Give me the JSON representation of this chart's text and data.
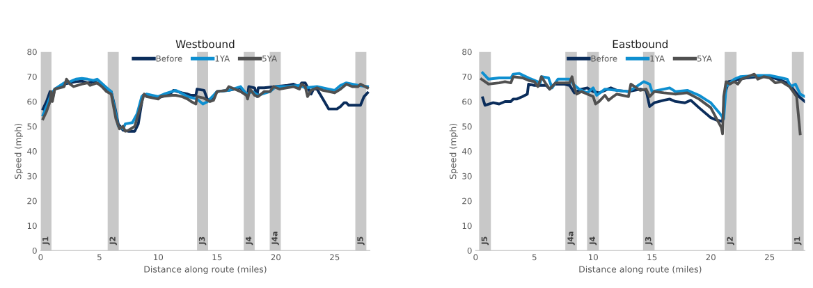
{
  "chart_data": [
    {
      "type": "line",
      "title": "Westbound",
      "xlabel": "Distance along route (miles)",
      "ylabel": "Speed (mph)",
      "xlim": [
        0,
        28
      ],
      "xticks": [
        0,
        5,
        10,
        15,
        20,
        25
      ],
      "ylim": [
        0,
        80
      ],
      "yticks": [
        0,
        10,
        20,
        30,
        40,
        50,
        60,
        70,
        80
      ],
      "grid": false,
      "legend": "top",
      "line_style": "solid",
      "marker": "none",
      "bands": [
        {
          "axis": "x",
          "from": 0,
          "to": 0.92,
          "label": "J1",
          "color": "#c8c8c8"
        },
        {
          "axis": "x",
          "from": 5.7,
          "to": 6.64,
          "label": "J2",
          "color": "#c8c8c8"
        },
        {
          "axis": "x",
          "from": 13.3,
          "to": 14.24,
          "label": "J3",
          "color": "#c8c8c8"
        },
        {
          "axis": "x",
          "from": 17.27,
          "to": 18.2,
          "label": "J4",
          "color": "#c8c8c8"
        },
        {
          "axis": "x",
          "from": 19.48,
          "to": 20.42,
          "label": "J4a",
          "color": "#c8c8c8"
        },
        {
          "axis": "x",
          "from": 26.76,
          "to": 27.7,
          "label": "J5",
          "color": "#c8c8c8"
        }
      ],
      "series": [
        {
          "name": "Before",
          "color": "#0b2d5b",
          "x": [
            0.2,
            0.5,
            0.8,
            1.0,
            1.2,
            2,
            2.5,
            3,
            3.5,
            4,
            4.5,
            5,
            5.5,
            6,
            6.3,
            6.6,
            7,
            7.5,
            8,
            8.3,
            8.7,
            9,
            10,
            11,
            11.3,
            12,
            12.5,
            12.8,
            13.2,
            13.3,
            13.9,
            14.2,
            14.5,
            15,
            16,
            17,
            17.3,
            17.6,
            17.7,
            18.2,
            18.4,
            18.5,
            19,
            20,
            21,
            21.5,
            22,
            22.2,
            22.5,
            23,
            23.2,
            23.5,
            24,
            24.5,
            25.2,
            25.5,
            25.8,
            26,
            26.2,
            27,
            27.2,
            27.5,
            27.8
          ],
          "values": [
            57,
            60,
            64,
            61,
            65,
            67,
            67.5,
            68,
            68.2,
            67.5,
            68,
            67,
            65.5,
            64,
            58,
            51,
            48.5,
            48,
            48,
            51,
            62.5,
            62.5,
            61.5,
            63,
            64.5,
            63.5,
            63,
            62.5,
            62.5,
            65,
            64.5,
            60.5,
            61,
            64,
            64.5,
            65.5,
            64,
            62,
            66,
            65.5,
            62,
            65.5,
            65.5,
            66,
            66.5,
            67,
            66,
            67.5,
            67.5,
            63,
            65,
            65,
            61,
            57,
            57,
            58,
            59.5,
            59.5,
            58.5,
            58.5,
            58.5,
            62,
            63.5
          ]
        },
        {
          "name": "1YA",
          "color": "#0e8fd0",
          "x": [
            0.2,
            0.5,
            0.9,
            1.2,
            2,
            2.5,
            3,
            3.5,
            4,
            4.5,
            4.8,
            5.5,
            6,
            6.3,
            6.6,
            7,
            7.2,
            7.8,
            8.2,
            8.6,
            9,
            10,
            10.5,
            11.5,
            12.5,
            13.3,
            13.8,
            14.2,
            14.8,
            15,
            16,
            17,
            17.5,
            18,
            18.5,
            19.5,
            20,
            21,
            22,
            22.5,
            23.5,
            24.5,
            25,
            25.5,
            26,
            27,
            27.8
          ],
          "values": [
            54.5,
            58,
            63,
            65,
            67.5,
            68,
            69,
            69.3,
            69,
            68.5,
            69,
            66,
            64,
            57,
            50,
            49,
            51,
            51.5,
            55,
            62,
            63,
            62,
            63,
            64.5,
            62,
            61,
            59,
            60,
            63,
            64,
            64.5,
            66,
            63,
            64,
            62.5,
            64,
            66,
            66,
            66.5,
            65.5,
            66,
            65,
            64.5,
            66.5,
            67.5,
            66.5,
            66
          ]
        },
        {
          "name": "5YA",
          "color": "#505050",
          "x": [
            0.2,
            0.5,
            0.8,
            0.9,
            1.0,
            1.2,
            2,
            2.2,
            2.5,
            2.8,
            3.5,
            4,
            4.2,
            4.8,
            5.2,
            5.6,
            6,
            6.4,
            6.7,
            7,
            7.2,
            7.5,
            8,
            8.8,
            9,
            10,
            10.2,
            11.2,
            11.5,
            12,
            12.5,
            12.8,
            13.2,
            13.3,
            13.8,
            14.4,
            14.7,
            15,
            15.8,
            16,
            17,
            17.5,
            17.6,
            17.8,
            18.2,
            18.5,
            19,
            19.5,
            19.8,
            20.3,
            21.5,
            22,
            22.2,
            22.5,
            22.7,
            23,
            23.5,
            24,
            25,
            25.5,
            26,
            26.5,
            27,
            27.2,
            27.8
          ],
          "values": [
            53,
            56,
            60,
            64,
            60,
            65,
            66,
            69,
            67,
            66,
            67,
            67.5,
            66.5,
            67.5,
            66,
            64,
            63,
            53,
            49,
            50,
            48,
            48.5,
            50,
            63,
            62,
            61,
            62,
            62.5,
            62.5,
            62,
            61,
            60,
            59,
            62,
            61.5,
            60,
            60.5,
            64,
            64.5,
            66,
            64,
            62.5,
            61,
            65,
            62.5,
            62,
            64,
            64,
            66,
            65,
            66,
            65,
            67,
            66,
            62,
            64.5,
            65.5,
            64.5,
            63.5,
            65,
            67,
            66,
            66,
            67,
            65.5
          ]
        }
      ]
    },
    {
      "type": "line",
      "title": "Eastbound",
      "xlabel": "Distance along route (miles)",
      "ylabel": "Speed (mph)",
      "xlim": [
        0,
        28
      ],
      "xticks": [
        0,
        5,
        10,
        15,
        20,
        25
      ],
      "ylim": [
        0,
        80
      ],
      "yticks": [
        0,
        10,
        20,
        30,
        40,
        50,
        60,
        70,
        80
      ],
      "grid": false,
      "legend": "top",
      "line_style": "solid",
      "marker": "none",
      "bands": [
        {
          "axis": "x",
          "from": 0.3,
          "to": 1.3,
          "label": "J5",
          "color": "#c8c8c8"
        },
        {
          "axis": "x",
          "from": 7.63,
          "to": 8.61,
          "label": "J4a",
          "color": "#c8c8c8"
        },
        {
          "axis": "x",
          "from": 9.48,
          "to": 10.48,
          "label": "J4",
          "color": "#c8c8c8"
        },
        {
          "axis": "x",
          "from": 14.24,
          "to": 15.22,
          "label": "J3",
          "color": "#c8c8c8"
        },
        {
          "axis": "x",
          "from": 21.18,
          "to": 22.19,
          "label": "J2",
          "color": "#c8c8c8"
        },
        {
          "axis": "x",
          "from": 26.9,
          "to": 27.9,
          "label": "J1",
          "color": "#c8c8c8"
        }
      ],
      "series": [
        {
          "name": "Before",
          "color": "#0b2d5b",
          "x": [
            0.6,
            0.8,
            1.5,
            2,
            2.5,
            3,
            3.2,
            3.5,
            4,
            4.4,
            4.5,
            5,
            6,
            6.3,
            6.7,
            7.5,
            8,
            8.4,
            9,
            9.5,
            10,
            10.5,
            11,
            11.5,
            12,
            13,
            14,
            14.5,
            14.8,
            15.2,
            16,
            16.5,
            17,
            17.8,
            18.3,
            19,
            20,
            20.5,
            21,
            21.2,
            21.5,
            22,
            23,
            24,
            25,
            26,
            26.7,
            27,
            27.5,
            28
          ],
          "values": [
            61.5,
            58.5,
            59.5,
            59,
            60,
            60,
            61,
            61,
            62,
            63,
            67,
            66.5,
            66.5,
            65,
            67,
            67,
            66.5,
            63.5,
            65,
            65.5,
            64,
            63.5,
            64.5,
            65.5,
            64.5,
            64,
            65,
            64.5,
            58,
            59.5,
            60.5,
            61,
            60,
            59.5,
            60.5,
            57.5,
            53.5,
            52.5,
            52,
            63,
            68,
            68.5,
            69.5,
            70,
            70,
            68.5,
            67,
            65,
            62,
            60
          ]
        },
        {
          "name": "1YA",
          "color": "#0e8fd0",
          "x": [
            0.6,
            0.8,
            1.1,
            2,
            3,
            3.2,
            3.7,
            4.5,
            5.5,
            5.6,
            6.2,
            6.5,
            7,
            8,
            8.3,
            8.8,
            9.5,
            10,
            10.3,
            11,
            12,
            13,
            13.5,
            14.3,
            14.8,
            15.0,
            16,
            16.5,
            17,
            18,
            19,
            20,
            20.8,
            21.1,
            21.3,
            22,
            22.5,
            24,
            25,
            26,
            26.5,
            26.8,
            27.2,
            27.6,
            28
          ],
          "values": [
            71.5,
            70.5,
            69,
            69.5,
            69.5,
            71,
            71.3,
            69.5,
            67.5,
            70,
            69.5,
            65.5,
            69,
            69,
            67,
            65,
            63.5,
            65.5,
            62.5,
            65,
            64.5,
            64,
            65.5,
            68,
            67,
            64,
            65,
            65.5,
            64,
            64.5,
            62.5,
            59.5,
            55,
            53,
            66,
            69,
            70,
            70.5,
            70.5,
            69.5,
            69,
            66,
            67,
            63,
            62
          ]
        },
        {
          "name": "5YA",
          "color": "#505050",
          "x": [
            0.5,
            1.1,
            2,
            2.5,
            3,
            3.2,
            4,
            4.5,
            5,
            5.3,
            5.6,
            6,
            6.3,
            6.8,
            8,
            8.2,
            8.4,
            8.6,
            9,
            9.5,
            10,
            10.2,
            10.5,
            11,
            11.3,
            11.7,
            12,
            13,
            13.2,
            14,
            14.5,
            14.8,
            15.2,
            16,
            17,
            18,
            19,
            20,
            20.5,
            20.9,
            21.0,
            21.1,
            21.3,
            21.6,
            22,
            22.3,
            22.6,
            23.7,
            24,
            24.5,
            25,
            25.5,
            26,
            26.7,
            27,
            27.3,
            27.6
          ],
          "values": [
            69,
            67,
            67.5,
            68,
            67.5,
            70,
            69.5,
            68.5,
            68,
            66,
            70,
            67,
            65,
            67.5,
            67.5,
            70,
            65.5,
            63,
            64,
            63,
            62,
            59,
            60,
            62.5,
            60.5,
            62,
            63,
            62,
            67,
            64.5,
            65,
            62,
            64,
            63.5,
            63,
            63.5,
            61,
            57.5,
            53,
            49.5,
            47,
            62,
            68,
            67,
            68,
            67,
            69,
            71,
            69,
            70,
            69.5,
            67.5,
            68,
            66,
            64,
            62,
            47
          ]
        }
      ]
    }
  ]
}
